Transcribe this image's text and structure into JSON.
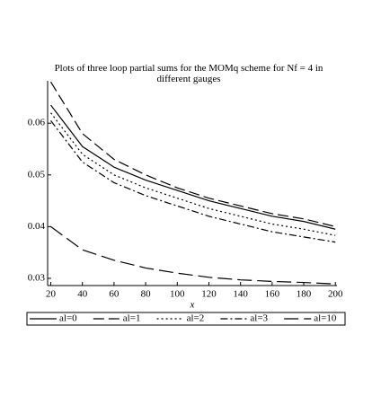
{
  "chart_data": {
    "type": "line",
    "title": "Plots of three loop partial sums for the MOMq scheme for Nf = 4 in different gauges",
    "xlabel": "x",
    "x": [
      20,
      40,
      60,
      80,
      100,
      120,
      140,
      160,
      180,
      200
    ],
    "xlim": [
      18,
      201
    ],
    "xticks": [
      20,
      40,
      60,
      80,
      100,
      120,
      140,
      160,
      180,
      200
    ],
    "ylim": [
      0.0286,
      0.0682
    ],
    "yticks": [
      0.03,
      0.04,
      0.05,
      0.06
    ],
    "series": [
      {
        "name": "al=0",
        "color": "#000000",
        "dash": "none",
        "values": [
          0.0635,
          0.0555,
          0.0515,
          0.049,
          0.047,
          0.045,
          0.0435,
          0.042,
          0.041,
          0.0395
        ]
      },
      {
        "name": "al=1",
        "color": "#000000",
        "dash": "12,5",
        "values": [
          0.068,
          0.058,
          0.053,
          0.05,
          0.0475,
          0.0455,
          0.044,
          0.0425,
          0.0415,
          0.04
        ]
      },
      {
        "name": "al=2",
        "color": "#000000",
        "dash": "2,3",
        "values": [
          0.062,
          0.054,
          0.05,
          0.0475,
          0.0455,
          0.0435,
          0.042,
          0.0405,
          0.0395,
          0.0383
        ]
      },
      {
        "name": "al=3",
        "color": "#000000",
        "dash": "8,3,2,3",
        "values": [
          0.0605,
          0.0525,
          0.0485,
          0.046,
          0.044,
          0.042,
          0.0405,
          0.039,
          0.038,
          0.037
        ]
      },
      {
        "name": "al=10",
        "color": "#000000",
        "dash": "16,6",
        "values": [
          0.04,
          0.0355,
          0.0335,
          0.032,
          0.031,
          0.0302,
          0.0297,
          0.0294,
          0.0292,
          0.0289
        ]
      }
    ]
  }
}
